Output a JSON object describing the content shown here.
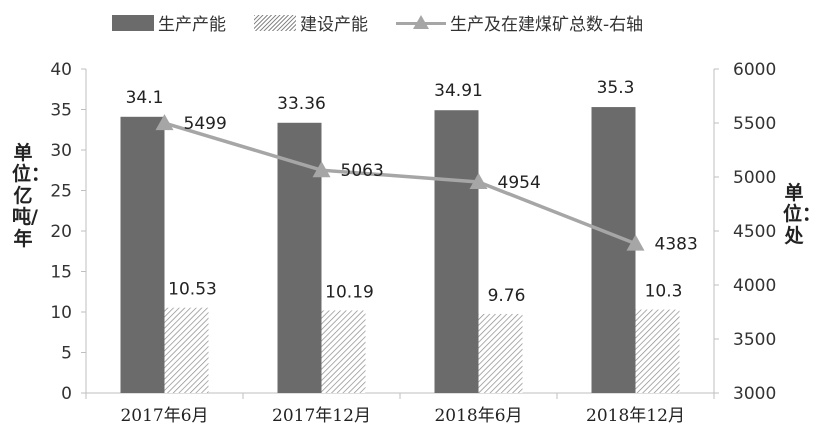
{
  "chart_data": {
    "type": "bar+line",
    "categories": [
      "2017年6月",
      "2017年12月",
      "2018年6月",
      "2018年12月"
    ],
    "series": [
      {
        "name": "生产产能",
        "type": "bar",
        "axis": "left",
        "values": [
          34.1,
          33.36,
          34.91,
          35.3
        ],
        "labels": [
          "34.1",
          "33.36",
          "34.91",
          "35.3"
        ],
        "color": "#6b6b6b"
      },
      {
        "name": "建设产能",
        "type": "bar",
        "axis": "left",
        "pattern": "hatched",
        "values": [
          10.53,
          10.19,
          9.76,
          10.3
        ],
        "labels": [
          "10.53",
          "10.19",
          "9.76",
          "10.3"
        ],
        "color": "#8a8a8a"
      },
      {
        "name": "生产及在建煤矿总数-右轴",
        "type": "line",
        "axis": "right",
        "marker": "triangle",
        "values": [
          5499,
          5063,
          4954,
          4383
        ],
        "labels": [
          "5499",
          "5063",
          "4954",
          "4383"
        ],
        "color": "#a6a6a6"
      }
    ],
    "left_axis": {
      "title": "单位：亿吨/年",
      "min": 0,
      "max": 40,
      "step": 5,
      "ticks": [
        "0",
        "5",
        "10",
        "15",
        "20",
        "25",
        "30",
        "35",
        "40"
      ]
    },
    "right_axis": {
      "title": "单位：处",
      "min": 3000,
      "max": 6000,
      "step": 500,
      "ticks": [
        "3000",
        "3500",
        "4000",
        "4500",
        "5000",
        "5500",
        "6000"
      ]
    },
    "grid": false,
    "legend_position": "top"
  }
}
